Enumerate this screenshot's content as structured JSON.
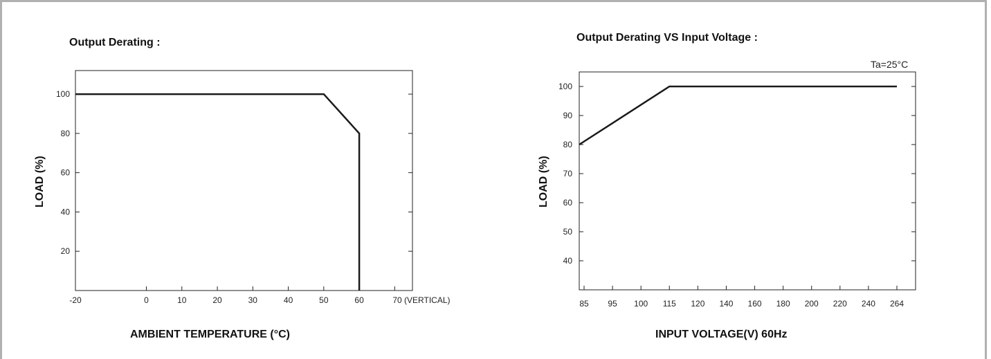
{
  "chart_data": [
    {
      "type": "line",
      "title": "Output Derating :",
      "xlabel": "AMBIENT TEMPERATURE (°C)",
      "ylabel": "LOAD (%)",
      "x_ticks": [
        "-20",
        "0",
        "10",
        "20",
        "30",
        "40",
        "50",
        "60",
        "70 (VERTICAL)"
      ],
      "x_tick_values": [
        -20,
        0,
        10,
        20,
        30,
        40,
        50,
        60,
        70
      ],
      "y_ticks": [
        "20",
        "40",
        "60",
        "80",
        "100"
      ],
      "y_tick_values": [
        20,
        40,
        60,
        80,
        100
      ],
      "xlim": [
        -20,
        75
      ],
      "ylim": [
        0,
        112
      ],
      "grid": false,
      "series": [
        {
          "x": [
            -20,
            50,
            60,
            60
          ],
          "y": [
            100,
            100,
            80,
            0
          ]
        }
      ]
    },
    {
      "type": "line",
      "title": "Output Derating VS Input Voltage :",
      "xlabel": "INPUT VOLTAGE(V) 60Hz",
      "ylabel": "LOAD (%)",
      "annotation": "Ta=25°C",
      "x_ticks": [
        "85",
        "95",
        "100",
        "115",
        "120",
        "140",
        "160",
        "180",
        "200",
        "220",
        "240",
        "264"
      ],
      "y_ticks": [
        "40",
        "50",
        "60",
        "70",
        "80",
        "90",
        "100"
      ],
      "y_tick_values": [
        40,
        50,
        60,
        70,
        80,
        90,
        100
      ],
      "ylim": [
        30,
        105
      ],
      "grid": false,
      "series": [
        {
          "x": [
            "85",
            "115",
            "264"
          ],
          "y": [
            80,
            100,
            100
          ]
        }
      ]
    }
  ]
}
